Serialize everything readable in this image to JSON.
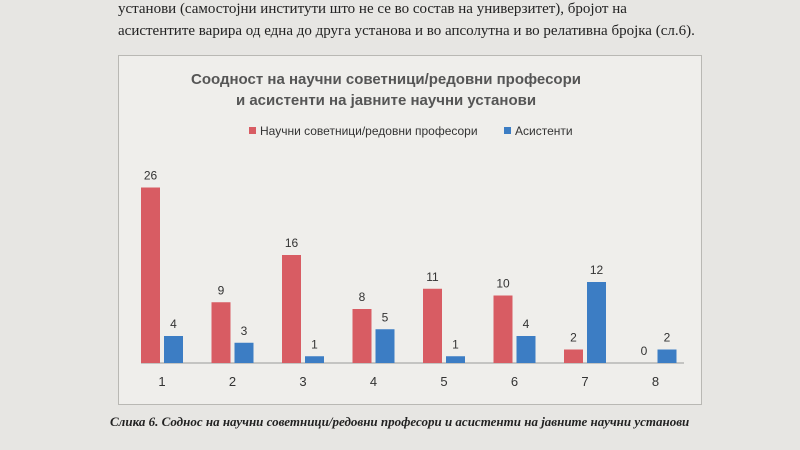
{
  "text": {
    "para_line1": "установи (самостојни институти што не се во состав на универзитет), бројот на",
    "para_line2": "асистентите варира од една до друга установа и во апсолутна и во релативна бројка (сл.6).",
    "caption": "Слика 6. Соднос на научни советници/редовни професори и асистенти на јавните научни установи"
  },
  "chart_data": {
    "type": "bar",
    "title_line1": "Соодност на научни советници/редовни професори",
    "title_line2": "и асистенти на јавните научни установи",
    "categories": [
      "1",
      "2",
      "3",
      "4",
      "5",
      "6",
      "7",
      "8"
    ],
    "series": [
      {
        "name": "Научни советници/редовни професори",
        "color": "#d85c63",
        "values": [
          26,
          9,
          16,
          8,
          11,
          10,
          2,
          0
        ]
      },
      {
        "name": "Асистенти",
        "color": "#3c7dc4",
        "values": [
          4,
          3,
          1,
          5,
          1,
          4,
          12,
          2
        ]
      }
    ],
    "ylim": [
      0,
      28
    ],
    "legend_position": "top",
    "grid": false,
    "data_labels": true
  }
}
